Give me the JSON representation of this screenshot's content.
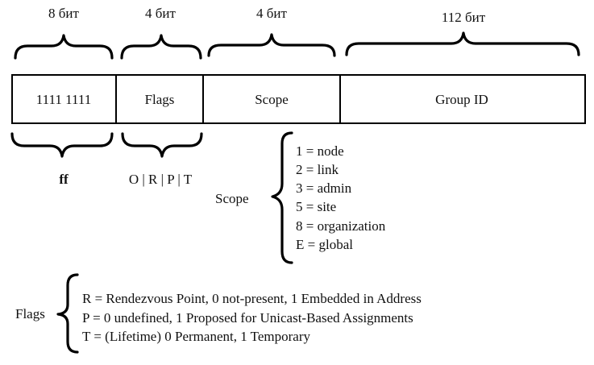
{
  "fields": [
    {
      "bits": "8 бит",
      "label": "1111 1111"
    },
    {
      "bits": "4 бит",
      "label": "Flags"
    },
    {
      "bits": "4 бит",
      "label": "Scope"
    },
    {
      "bits": "112 бит",
      "label": "Group ID"
    }
  ],
  "below": {
    "prefix_label": "ff",
    "flags_bits": "O | R | P | T"
  },
  "scope": {
    "title": "Scope",
    "values": [
      "1 = node",
      "2 = link",
      "3 = admin",
      "5 = site",
      "8 = organization",
      "E = global"
    ]
  },
  "flags": {
    "title": "Flags",
    "values": [
      "R = Rendezvous Point, 0 not-present, 1 Embedded in Address",
      "P = 0 undefined, 1 Proposed for Unicast-Based Assignments",
      "T = (Lifetime) 0 Permanent, 1 Temporary"
    ]
  }
}
